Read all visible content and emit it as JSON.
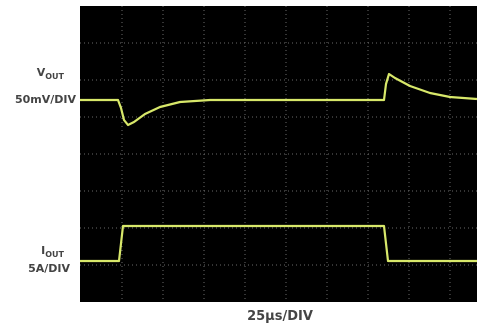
{
  "channels": [
    {
      "symbol": "V",
      "subscript": "OUT",
      "scale": "50mV/DIV"
    },
    {
      "symbol": "I",
      "subscript": "OUT",
      "scale": "5A/DIV"
    }
  ],
  "timebase": "25µs/DIV"
}
